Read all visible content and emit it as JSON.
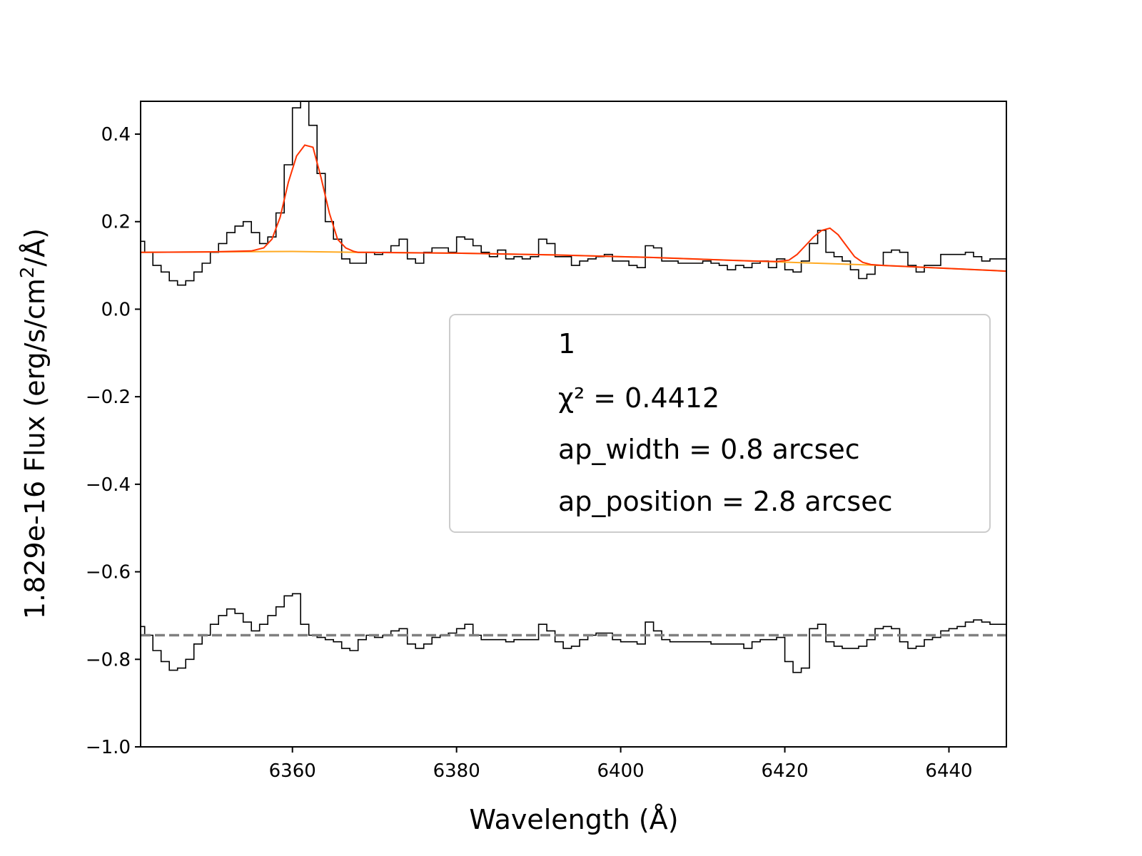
{
  "chart_data": {
    "type": "line",
    "xlabel": "Wavelength (Å)",
    "ylabel_prefix": "1.829e-16  Flux (erg/s/cm",
    "ylabel_exp": "2",
    "ylabel_suffix": "/Å)",
    "xlim": [
      6341.5,
      6447
    ],
    "ylim": [
      -1.0,
      0.475
    ],
    "xticks": [
      6360,
      6380,
      6400,
      6420,
      6440
    ],
    "xtick_labels": [
      "6360",
      "6380",
      "6400",
      "6420",
      "6440"
    ],
    "yticks": [
      0.4,
      0.2,
      0.0,
      -0.2,
      -0.4,
      -0.6,
      -0.8,
      -1.0
    ],
    "ytick_labels": [
      "0.4",
      "0.2",
      "0.0",
      "−0.2",
      "−0.4",
      "−0.6",
      "−0.8",
      "−1.0"
    ],
    "grid": false,
    "legend": {
      "placement": "center-right",
      "lines": [
        "1",
        "χ² = 0.4412",
        "ap_width = 0.8 arcsec",
        "ap_position = 2.8 arcsec"
      ]
    },
    "series": [
      {
        "style": "step",
        "color": "#000000",
        "x": [
          6341.5,
          6342.5,
          6343.5,
          6344.5,
          6345.5,
          6346.5,
          6347.5,
          6348.5,
          6349.5,
          6350.5,
          6351.5,
          6352.5,
          6353.5,
          6354.5,
          6355.5,
          6356.5,
          6357.5,
          6358.5,
          6359.5,
          6360.5,
          6361.5,
          6362.5,
          6363.5,
          6364.5,
          6365.5,
          6366.5,
          6367.5,
          6368.5,
          6369.5,
          6370.5,
          6371.5,
          6372.5,
          6373.5,
          6374.5,
          6375.5,
          6376.5,
          6377.5,
          6378.5,
          6379.5,
          6380.5,
          6381.5,
          6382.5,
          6383.5,
          6384.5,
          6385.5,
          6386.5,
          6387.5,
          6388.5,
          6389.5,
          6390.5,
          6391.5,
          6392.5,
          6393.5,
          6394.5,
          6395.5,
          6396.5,
          6397.5,
          6398.5,
          6399.5,
          6400.5,
          6401.5,
          6402.5,
          6403.5,
          6404.5,
          6405.5,
          6406.5,
          6407.5,
          6408.5,
          6409.5,
          6410.5,
          6411.5,
          6412.5,
          6413.5,
          6414.5,
          6415.5,
          6416.5,
          6417.5,
          6418.5,
          6419.5,
          6420.5,
          6421.5,
          6422.5,
          6423.5,
          6424.5,
          6425.5,
          6426.5,
          6427.5,
          6428.5,
          6429.5,
          6430.5,
          6431.5,
          6432.5,
          6433.5,
          6434.5,
          6435.5,
          6436.5,
          6437.5,
          6438.5,
          6439.5,
          6440.5,
          6441.5,
          6442.5,
          6443.5,
          6444.5,
          6445.5,
          6446.5
        ],
        "y": [
          0.155,
          0.13,
          0.1,
          0.085,
          0.065,
          0.055,
          0.065,
          0.085,
          0.105,
          0.13,
          0.15,
          0.175,
          0.19,
          0.2,
          0.175,
          0.15,
          0.165,
          0.22,
          0.33,
          0.46,
          0.49,
          0.42,
          0.31,
          0.2,
          0.16,
          0.115,
          0.105,
          0.105,
          0.13,
          0.125,
          0.13,
          0.145,
          0.16,
          0.115,
          0.105,
          0.13,
          0.14,
          0.14,
          0.13,
          0.165,
          0.16,
          0.145,
          0.13,
          0.12,
          0.135,
          0.115,
          0.12,
          0.115,
          0.12,
          0.16,
          0.15,
          0.12,
          0.12,
          0.1,
          0.11,
          0.115,
          0.12,
          0.125,
          0.11,
          0.11,
          0.1,
          0.095,
          0.145,
          0.14,
          0.11,
          0.11,
          0.105,
          0.105,
          0.105,
          0.11,
          0.105,
          0.1,
          0.09,
          0.1,
          0.095,
          0.105,
          0.11,
          0.095,
          0.115,
          0.09,
          0.085,
          0.11,
          0.15,
          0.18,
          0.13,
          0.12,
          0.11,
          0.09,
          0.07,
          0.08,
          0.1,
          0.13,
          0.135,
          0.13,
          0.1,
          0.085,
          0.1,
          0.1,
          0.125,
          0.125,
          0.125,
          0.13,
          0.12,
          0.11,
          0.115,
          0.115
        ]
      },
      {
        "style": "step",
        "color": "#000000",
        "x": [
          6341.5,
          6342.5,
          6343.5,
          6344.5,
          6345.5,
          6346.5,
          6347.5,
          6348.5,
          6349.5,
          6350.5,
          6351.5,
          6352.5,
          6353.5,
          6354.5,
          6355.5,
          6356.5,
          6357.5,
          6358.5,
          6359.5,
          6360.5,
          6361.5,
          6362.5,
          6363.5,
          6364.5,
          6365.5,
          6366.5,
          6367.5,
          6368.5,
          6369.5,
          6370.5,
          6371.5,
          6372.5,
          6373.5,
          6374.5,
          6375.5,
          6376.5,
          6377.5,
          6378.5,
          6379.5,
          6380.5,
          6381.5,
          6382.5,
          6383.5,
          6384.5,
          6385.5,
          6386.5,
          6387.5,
          6388.5,
          6389.5,
          6390.5,
          6391.5,
          6392.5,
          6393.5,
          6394.5,
          6395.5,
          6396.5,
          6397.5,
          6398.5,
          6399.5,
          6400.5,
          6401.5,
          6402.5,
          6403.5,
          6404.5,
          6405.5,
          6406.5,
          6407.5,
          6408.5,
          6409.5,
          6410.5,
          6411.5,
          6412.5,
          6413.5,
          6414.5,
          6415.5,
          6416.5,
          6417.5,
          6418.5,
          6419.5,
          6420.5,
          6421.5,
          6422.5,
          6423.5,
          6424.5,
          6425.5,
          6426.5,
          6427.5,
          6428.5,
          6429.5,
          6430.5,
          6431.5,
          6432.5,
          6433.5,
          6434.5,
          6435.5,
          6436.5,
          6437.5,
          6438.5,
          6439.5,
          6440.5,
          6441.5,
          6442.5,
          6443.5,
          6444.5,
          6445.5,
          6446.5
        ],
        "y": [
          -0.725,
          -0.745,
          -0.78,
          -0.805,
          -0.825,
          -0.82,
          -0.8,
          -0.765,
          -0.745,
          -0.72,
          -0.7,
          -0.685,
          -0.695,
          -0.715,
          -0.735,
          -0.72,
          -0.7,
          -0.68,
          -0.655,
          -0.65,
          -0.72,
          -0.745,
          -0.75,
          -0.755,
          -0.76,
          -0.775,
          -0.78,
          -0.755,
          -0.745,
          -0.75,
          -0.745,
          -0.735,
          -0.73,
          -0.765,
          -0.775,
          -0.765,
          -0.75,
          -0.745,
          -0.74,
          -0.73,
          -0.72,
          -0.745,
          -0.755,
          -0.755,
          -0.755,
          -0.76,
          -0.755,
          -0.755,
          -0.755,
          -0.72,
          -0.735,
          -0.76,
          -0.775,
          -0.77,
          -0.755,
          -0.745,
          -0.74,
          -0.74,
          -0.755,
          -0.76,
          -0.76,
          -0.765,
          -0.715,
          -0.735,
          -0.755,
          -0.76,
          -0.76,
          -0.76,
          -0.76,
          -0.76,
          -0.765,
          -0.765,
          -0.765,
          -0.765,
          -0.775,
          -0.76,
          -0.755,
          -0.755,
          -0.75,
          -0.805,
          -0.83,
          -0.82,
          -0.73,
          -0.72,
          -0.76,
          -0.77,
          -0.775,
          -0.775,
          -0.77,
          -0.755,
          -0.73,
          -0.725,
          -0.73,
          -0.76,
          -0.775,
          -0.77,
          -0.755,
          -0.75,
          -0.735,
          -0.73,
          -0.725,
          -0.715,
          -0.71,
          -0.715,
          -0.72,
          -0.72
        ]
      },
      {
        "style": "line",
        "color": "#ffaa22",
        "x": [
          6341.5,
          6350,
          6360,
          6368,
          6380,
          6392,
          6404,
          6416,
          6424,
          6432,
          6447
        ],
        "y": [
          0.13,
          0.131,
          0.132,
          0.13,
          0.128,
          0.124,
          0.118,
          0.11,
          0.105,
          0.1,
          0.087
        ]
      },
      {
        "style": "line",
        "color": "#ff3300",
        "x": [
          6341.5,
          6350,
          6355,
          6356.5,
          6357.5,
          6358.5,
          6359.5,
          6360.5,
          6361.5,
          6362.5,
          6363.5,
          6364.5,
          6365.5,
          6366.5,
          6367.5,
          6368,
          6380,
          6392,
          6404,
          6416,
          6419,
          6420.5,
          6421.5,
          6422.5,
          6423.5,
          6424.5,
          6425.5,
          6426.5,
          6427.5,
          6428.5,
          6429.5,
          6430.5,
          6432,
          6447
        ],
        "y": [
          0.13,
          0.131,
          0.133,
          0.14,
          0.16,
          0.21,
          0.29,
          0.35,
          0.375,
          0.37,
          0.3,
          0.22,
          0.16,
          0.14,
          0.132,
          0.13,
          0.128,
          0.124,
          0.118,
          0.11,
          0.109,
          0.112,
          0.125,
          0.145,
          0.165,
          0.18,
          0.185,
          0.17,
          0.145,
          0.12,
          0.107,
          0.102,
          0.1,
          0.087
        ]
      },
      {
        "style": "dashed",
        "color": "#808080",
        "x": [
          6341.5,
          6447
        ],
        "y": [
          -0.745,
          -0.745
        ]
      }
    ]
  }
}
